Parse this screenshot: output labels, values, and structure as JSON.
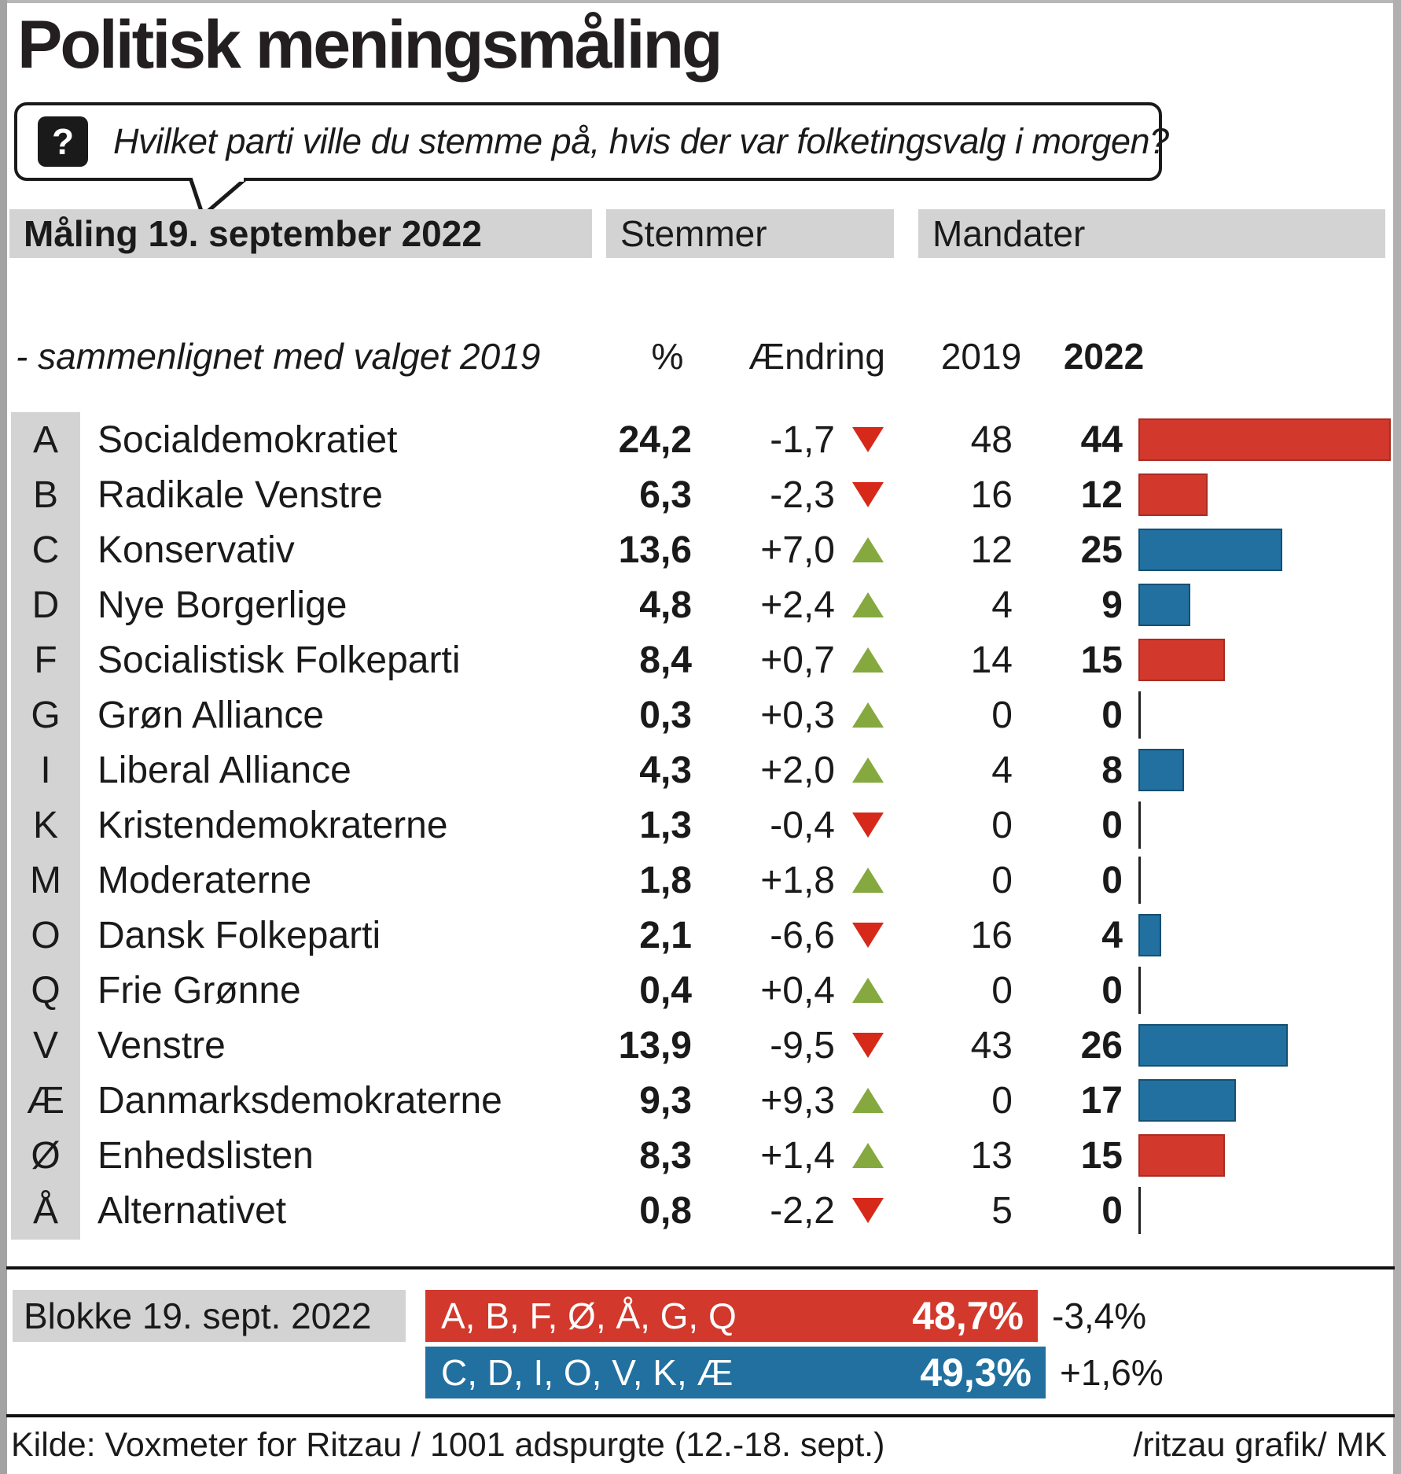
{
  "title": "Politisk meningsmåling",
  "question": {
    "icon_glyph": "?",
    "text": "Hvilket parti ville du stemme på, hvis der var folketingsvalg i morgen?"
  },
  "table": {
    "header_poll": "Måling 19. september 2022",
    "header_votes": "Stemmer",
    "header_mandates": "Mandater",
    "sub_compare": "- sammenlignet med valget 2019",
    "sub_pct": "%",
    "sub_change": "Ændring",
    "sub_2019": "2019",
    "sub_2022": "2022",
    "parties": [
      {
        "letter": "A",
        "name": "Socialdemokratiet",
        "pct": "24,2",
        "change": "-1,7",
        "direction": "down",
        "mandates_2019": 48,
        "mandates_2022": 44,
        "bloc": "red"
      },
      {
        "letter": "B",
        "name": "Radikale Venstre",
        "pct": "6,3",
        "change": "-2,3",
        "direction": "down",
        "mandates_2019": 16,
        "mandates_2022": 12,
        "bloc": "red"
      },
      {
        "letter": "C",
        "name": "Konservativ",
        "pct": "13,6",
        "change": "+7,0",
        "direction": "up",
        "mandates_2019": 12,
        "mandates_2022": 25,
        "bloc": "blue"
      },
      {
        "letter": "D",
        "name": "Nye Borgerlige",
        "pct": "4,8",
        "change": "+2,4",
        "direction": "up",
        "mandates_2019": 4,
        "mandates_2022": 9,
        "bloc": "blue"
      },
      {
        "letter": "F",
        "name": "Socialistisk Folkeparti",
        "pct": "8,4",
        "change": "+0,7",
        "direction": "up",
        "mandates_2019": 14,
        "mandates_2022": 15,
        "bloc": "red"
      },
      {
        "letter": "G",
        "name": "Grøn Alliance",
        "pct": "0,3",
        "change": "+0,3",
        "direction": "up",
        "mandates_2019": 0,
        "mandates_2022": 0,
        "bloc": "none"
      },
      {
        "letter": "I",
        "name": "Liberal Alliance",
        "pct": "4,3",
        "change": "+2,0",
        "direction": "up",
        "mandates_2019": 4,
        "mandates_2022": 8,
        "bloc": "blue"
      },
      {
        "letter": "K",
        "name": "Kristendemokraterne",
        "pct": "1,3",
        "change": "-0,4",
        "direction": "down",
        "mandates_2019": 0,
        "mandates_2022": 0,
        "bloc": "none"
      },
      {
        "letter": "M",
        "name": "Moderaterne",
        "pct": "1,8",
        "change": "+1,8",
        "direction": "up",
        "mandates_2019": 0,
        "mandates_2022": 0,
        "bloc": "none"
      },
      {
        "letter": "O",
        "name": "Dansk Folkeparti",
        "pct": "2,1",
        "change": "-6,6",
        "direction": "down",
        "mandates_2019": 16,
        "mandates_2022": 4,
        "bloc": "blue"
      },
      {
        "letter": "Q",
        "name": "Frie Grønne",
        "pct": "0,4",
        "change": "+0,4",
        "direction": "up",
        "mandates_2019": 0,
        "mandates_2022": 0,
        "bloc": "none"
      },
      {
        "letter": "V",
        "name": "Venstre",
        "pct": "13,9",
        "change": "-9,5",
        "direction": "down",
        "mandates_2019": 43,
        "mandates_2022": 26,
        "bloc": "blue"
      },
      {
        "letter": "Æ",
        "name": "Danmarksdemokraterne",
        "pct": "9,3",
        "change": "+9,3",
        "direction": "up",
        "mandates_2019": 0,
        "mandates_2022": 17,
        "bloc": "blue"
      },
      {
        "letter": "Ø",
        "name": "Enhedslisten",
        "pct": "8,3",
        "change": "+1,4",
        "direction": "up",
        "mandates_2019": 13,
        "mandates_2022": 15,
        "bloc": "red"
      },
      {
        "letter": "Å",
        "name": "Alternativet",
        "pct": "0,8",
        "change": "-2,2",
        "direction": "down",
        "mandates_2019": 5,
        "mandates_2022": 0,
        "bloc": "none"
      }
    ]
  },
  "blocks": {
    "label": "Blokke 19. sept. 2022",
    "red": {
      "letters": "A, B, F, Ø, Å, G, Q",
      "pct": "48,7%",
      "delta": "-3,4%",
      "value": 48.7
    },
    "blue": {
      "letters": "C, D, I, O, V, K, Æ",
      "pct": "49,3%",
      "delta": "+1,6%",
      "value": 49.3
    }
  },
  "footer": {
    "source": "Kilde: Voxmeter for Ritzau / 1001 adspurgte (12.-18. sept.)",
    "credit": "/ritzau grafik/ MK"
  },
  "colors": {
    "red_bloc": "#d2382c",
    "red_bloc_border": "#a92c22",
    "blue_bloc": "#2170a0",
    "blue_bloc_border": "#164f73",
    "triangle_up_green": "#85a93f",
    "triangle_down_red": "#d6291a",
    "header_gray": "#d3d3d3",
    "text": "#1a1a1a"
  },
  "chart_data": {
    "type": "bar",
    "title": "Politisk meningsmåling",
    "subtitle": "Måling 19. september 2022 - sammenlignet med valget 2019",
    "categories": [
      "A",
      "B",
      "C",
      "D",
      "F",
      "G",
      "I",
      "K",
      "M",
      "O",
      "Q",
      "V",
      "Æ",
      "Ø",
      "Å"
    ],
    "party_names": [
      "Socialdemokratiet",
      "Radikale Venstre",
      "Konservativ",
      "Nye Borgerlige",
      "Socialistisk Folkeparti",
      "Grøn Alliance",
      "Liberal Alliance",
      "Kristendemokraterne",
      "Moderaterne",
      "Dansk Folkeparti",
      "Frie Grønne",
      "Venstre",
      "Danmarksdemokraterne",
      "Enhedslisten",
      "Alternativet"
    ],
    "series": [
      {
        "name": "Stemmer %",
        "values": [
          24.2,
          6.3,
          13.6,
          4.8,
          8.4,
          0.3,
          4.3,
          1.3,
          1.8,
          2.1,
          0.4,
          13.9,
          9.3,
          8.3,
          0.8
        ]
      },
      {
        "name": "Ændring",
        "values": [
          -1.7,
          -2.3,
          7.0,
          2.4,
          0.7,
          0.3,
          2.0,
          -0.4,
          1.8,
          -6.6,
          0.4,
          -9.5,
          9.3,
          1.4,
          -2.2
        ]
      },
      {
        "name": "Mandater 2019",
        "values": [
          48,
          16,
          12,
          4,
          14,
          0,
          4,
          0,
          0,
          16,
          0,
          43,
          0,
          13,
          5
        ]
      },
      {
        "name": "Mandater 2022",
        "values": [
          44,
          12,
          25,
          9,
          15,
          0,
          8,
          0,
          0,
          4,
          0,
          26,
          17,
          15,
          0
        ]
      }
    ],
    "bar_color_by_party": [
      "red",
      "red",
      "blue",
      "blue",
      "red",
      "none",
      "blue",
      "none",
      "none",
      "blue",
      "none",
      "blue",
      "blue",
      "red",
      "none"
    ],
    "blocks": [
      {
        "name": "A, B, F, Ø, Å, G, Q",
        "value": 48.7,
        "change": -3.4,
        "color": "red"
      },
      {
        "name": "C, D, I, O, V, K, Æ",
        "value": 49.3,
        "change": 1.6,
        "color": "blue"
      }
    ],
    "legend_position": "none",
    "grid": false
  }
}
